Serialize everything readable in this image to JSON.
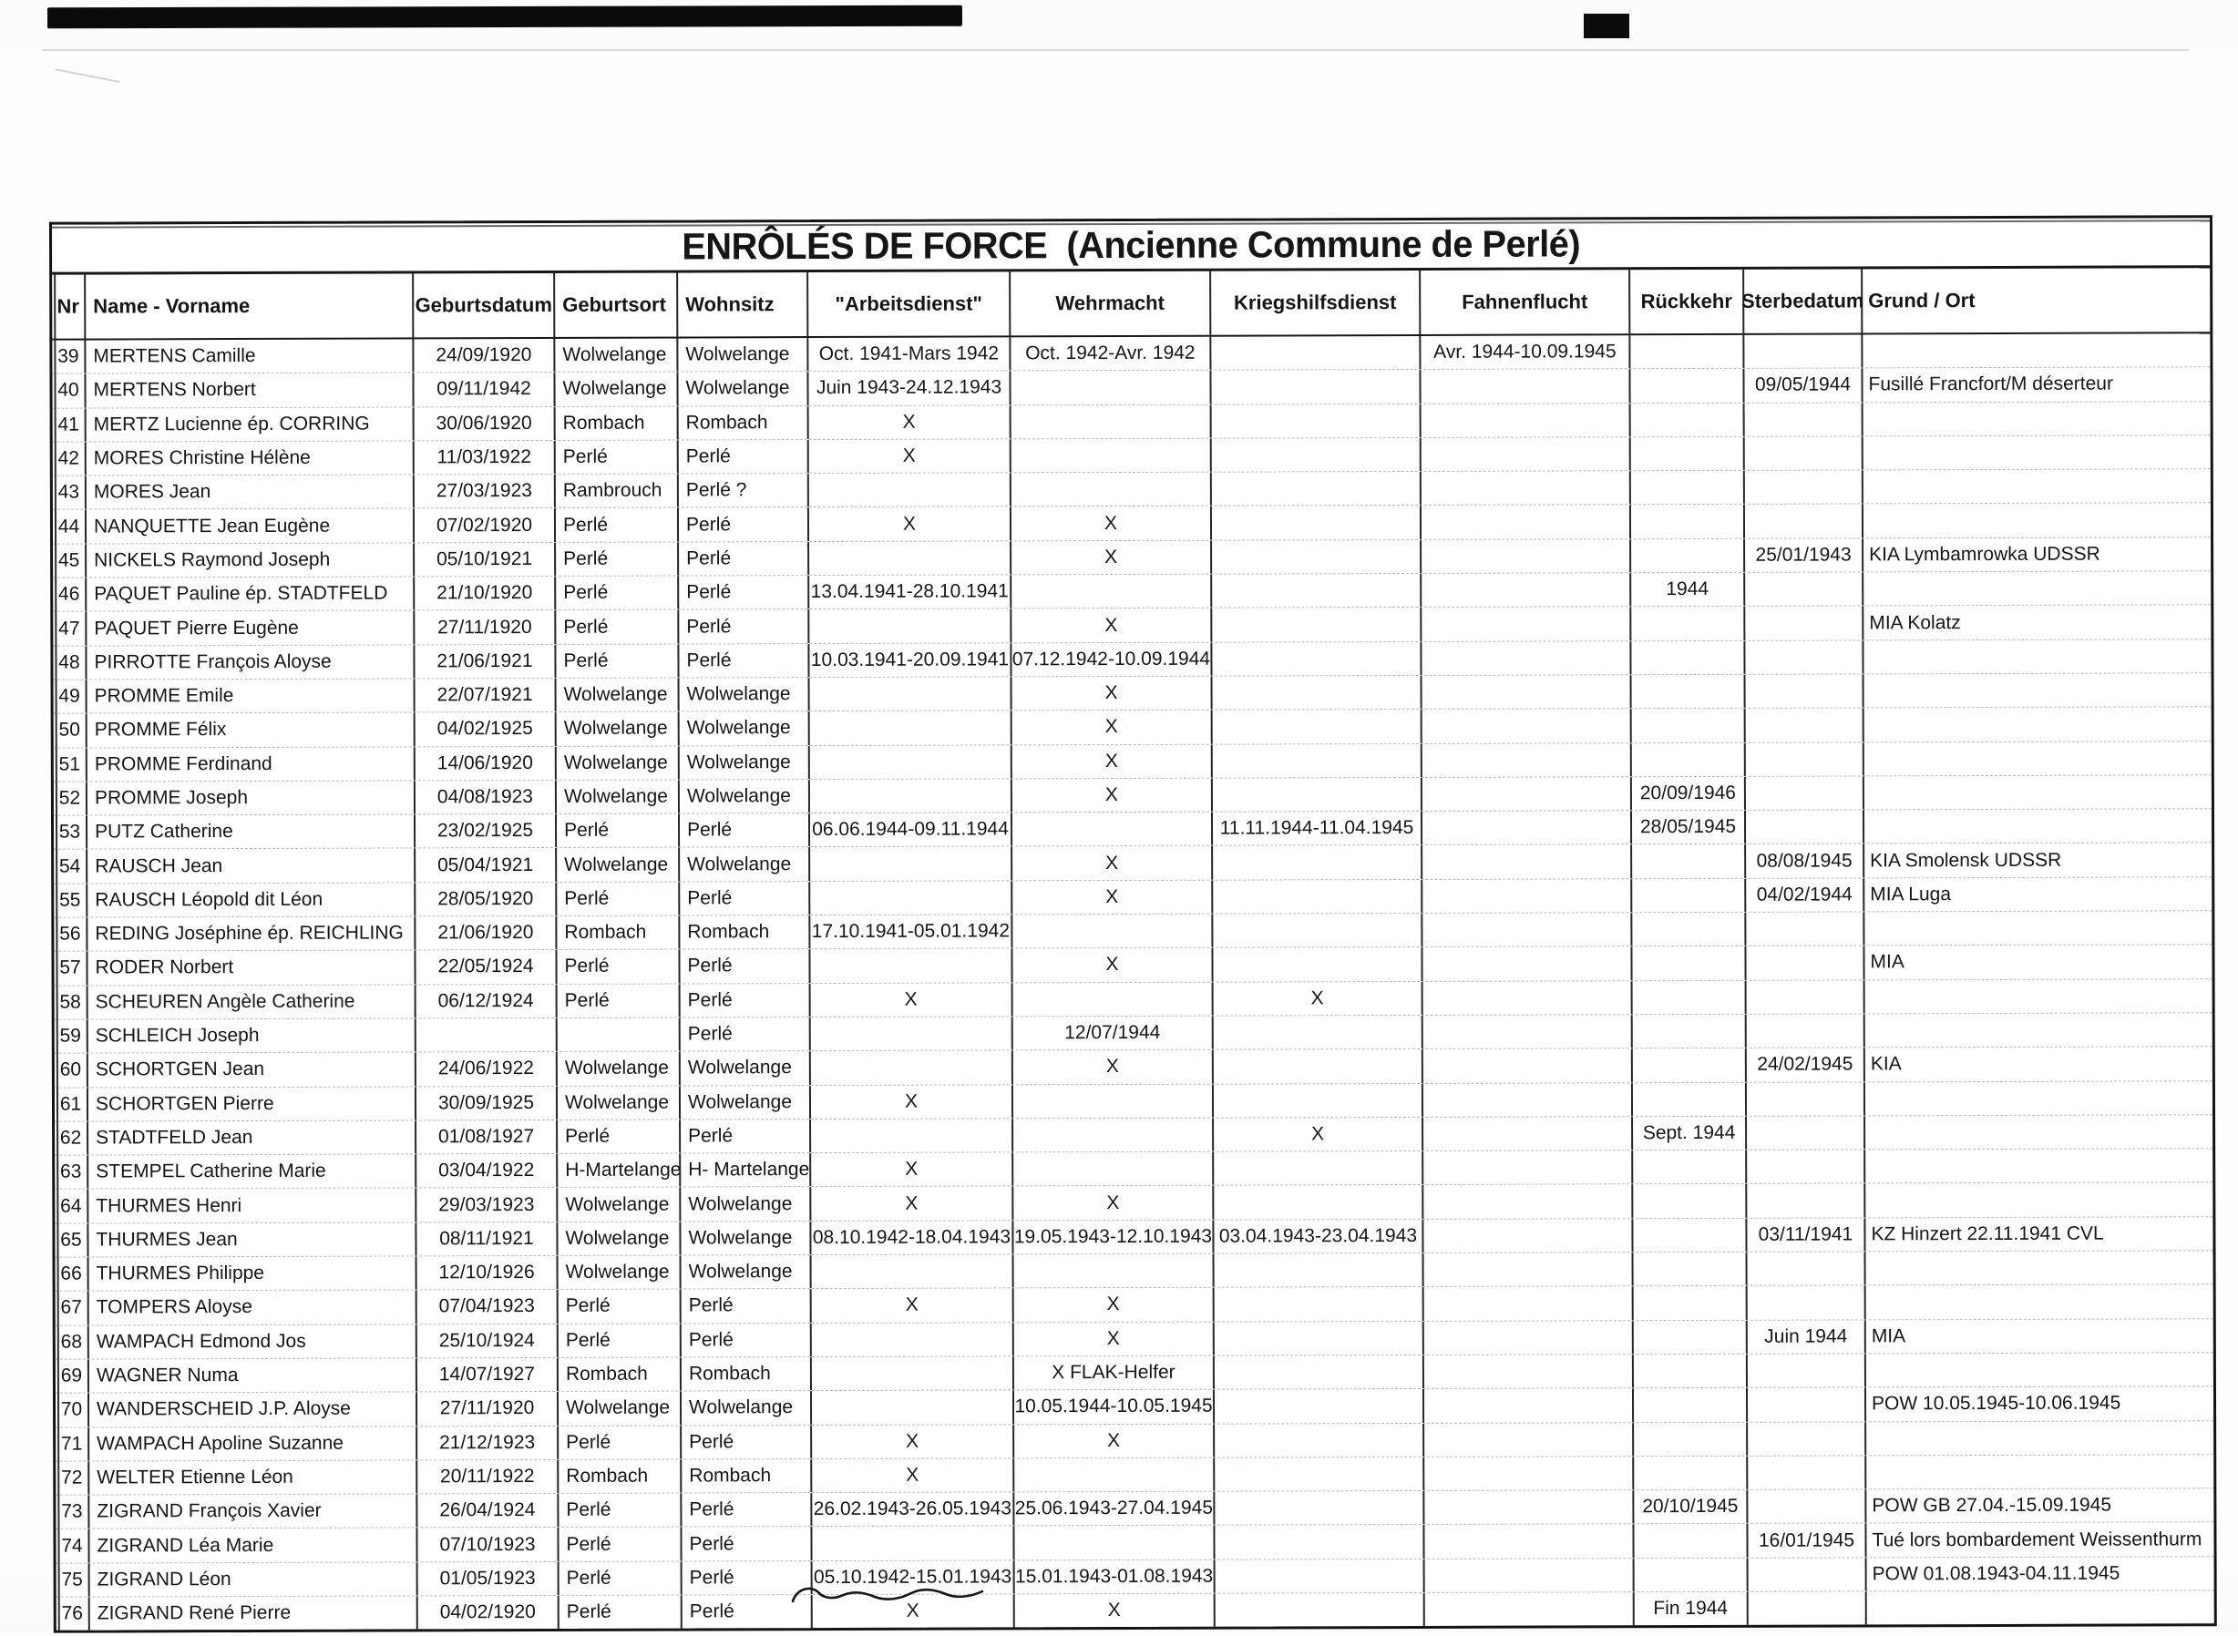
{
  "title": "ENRÔLÉS DE FORCE  (Ancienne Commune de Perlé)",
  "table": {
    "columns": [
      "Nr",
      "Name - Vorname",
      "Geburtsdatum",
      "Geburtsort",
      "Wohnsitz",
      "\"Arbeitsdienst\"",
      "Wehrmacht",
      "Kriegshilfsdienst",
      "Fahnenflucht",
      "Rückkehr",
      "Sterbedatum",
      "Grund / Ort"
    ],
    "rows": [
      [
        "39",
        "MERTENS Camille",
        "24/09/1920",
        "Wolwelange",
        "Wolwelange",
        "Oct. 1941-Mars 1942",
        "Oct. 1942-Avr. 1942",
        "",
        "Avr. 1944-10.09.1945",
        "",
        "",
        ""
      ],
      [
        "40",
        "MERTENS Norbert",
        "09/11/1942",
        "Wolwelange",
        "Wolwelange",
        "Juin 1943-24.12.1943",
        "",
        "",
        "",
        "",
        "09/05/1944",
        "Fusillé Francfort/M déserteur"
      ],
      [
        "41",
        "MERTZ Lucienne ép. CORRING",
        "30/06/1920",
        "Rombach",
        "Rombach",
        "X",
        "",
        "",
        "",
        "",
        "",
        ""
      ],
      [
        "42",
        "MORES Christine Hélène",
        "11/03/1922",
        "Perlé",
        "Perlé",
        "X",
        "",
        "",
        "",
        "",
        "",
        ""
      ],
      [
        "43",
        "MORES Jean",
        "27/03/1923",
        "Rambrouch",
        "Perlé ?",
        "",
        "",
        "",
        "",
        "",
        "",
        ""
      ],
      [
        "44",
        "NANQUETTE Jean Eugène",
        "07/02/1920",
        "Perlé",
        "Perlé",
        "X",
        "X",
        "",
        "",
        "",
        "",
        ""
      ],
      [
        "45",
        "NICKELS Raymond Joseph",
        "05/10/1921",
        "Perlé",
        "Perlé",
        "",
        "X",
        "",
        "",
        "",
        "25/01/1943",
        "KIA Lymbamrowka UDSSR"
      ],
      [
        "46",
        "PAQUET Pauline ép. STADTFELD",
        "21/10/1920",
        "Perlé",
        "Perlé",
        "13.04.1941-28.10.1941",
        "",
        "",
        "",
        "1944",
        "",
        ""
      ],
      [
        "47",
        "PAQUET Pierre Eugène",
        "27/11/1920",
        "Perlé",
        "Perlé",
        "",
        "X",
        "",
        "",
        "",
        "",
        "MIA Kolatz"
      ],
      [
        "48",
        "PIRROTTE François Aloyse",
        "21/06/1921",
        "Perlé",
        "Perlé",
        "10.03.1941-20.09.1941",
        "07.12.1942-10.09.1944",
        "",
        "",
        "",
        "",
        ""
      ],
      [
        "49",
        "PROMME Emile",
        "22/07/1921",
        "Wolwelange",
        "Wolwelange",
        "",
        "X",
        "",
        "",
        "",
        "",
        ""
      ],
      [
        "50",
        "PROMME Félix",
        "04/02/1925",
        "Wolwelange",
        "Wolwelange",
        "",
        "X",
        "",
        "",
        "",
        "",
        ""
      ],
      [
        "51",
        "PROMME Ferdinand",
        "14/06/1920",
        "Wolwelange",
        "Wolwelange",
        "",
        "X",
        "",
        "",
        "",
        "",
        ""
      ],
      [
        "52",
        "PROMME Joseph",
        "04/08/1923",
        "Wolwelange",
        "Wolwelange",
        "",
        "X",
        "",
        "",
        "20/09/1946",
        "",
        ""
      ],
      [
        "53",
        "PUTZ Catherine",
        "23/02/1925",
        "Perlé",
        "Perlé",
        "06.06.1944-09.11.1944",
        "",
        "11.11.1944-11.04.1945",
        "",
        "28/05/1945",
        "",
        ""
      ],
      [
        "54",
        "RAUSCH Jean",
        "05/04/1921",
        "Wolwelange",
        "Wolwelange",
        "",
        "X",
        "",
        "",
        "",
        "08/08/1945",
        "KIA Smolensk UDSSR"
      ],
      [
        "55",
        "RAUSCH Léopold dit Léon",
        "28/05/1920",
        "Perlé",
        "Perlé",
        "",
        "X",
        "",
        "",
        "",
        "04/02/1944",
        "MIA Luga"
      ],
      [
        "56",
        "REDING Joséphine ép. REICHLING",
        "21/06/1920",
        "Rombach",
        "Rombach",
        "17.10.1941-05.01.1942",
        "",
        "",
        "",
        "",
        "",
        ""
      ],
      [
        "57",
        "RODER Norbert",
        "22/05/1924",
        "Perlé",
        "Perlé",
        "",
        "X",
        "",
        "",
        "",
        "",
        "MIA"
      ],
      [
        "58",
        "SCHEUREN Angèle Catherine",
        "06/12/1924",
        "Perlé",
        "Perlé",
        "X",
        "",
        "X",
        "",
        "",
        "",
        ""
      ],
      [
        "59",
        "SCHLEICH Joseph",
        "",
        "",
        "Perlé",
        "",
        "12/07/1944",
        "",
        "",
        "",
        "",
        ""
      ],
      [
        "60",
        "SCHORTGEN Jean",
        "24/06/1922",
        "Wolwelange",
        "Wolwelange",
        "",
        "X",
        "",
        "",
        "",
        "24/02/1945",
        "KIA"
      ],
      [
        "61",
        "SCHORTGEN Pierre",
        "30/09/1925",
        "Wolwelange",
        "Wolwelange",
        "X",
        "",
        "",
        "",
        "",
        "",
        ""
      ],
      [
        "62",
        "STADTFELD Jean",
        "01/08/1927",
        "Perlé",
        "Perlé",
        "",
        "",
        "X",
        "",
        "Sept. 1944",
        "",
        ""
      ],
      [
        "63",
        "STEMPEL Catherine Marie",
        "03/04/1922",
        "H-Martelange",
        "H- Martelange",
        "X",
        "",
        "",
        "",
        "",
        "",
        ""
      ],
      [
        "64",
        "THURMES Henri",
        "29/03/1923",
        "Wolwelange",
        "Wolwelange",
        "X",
        "X",
        "",
        "",
        "",
        "",
        ""
      ],
      [
        "65",
        "THURMES Jean",
        "08/11/1921",
        "Wolwelange",
        "Wolwelange",
        "08.10.1942-18.04.1943",
        "19.05.1943-12.10.1943",
        "03.04.1943-23.04.1943",
        "",
        "",
        "03/11/1941",
        "KZ Hinzert 22.11.1941 CVL"
      ],
      [
        "66",
        "THURMES Philippe",
        "12/10/1926",
        "Wolwelange",
        "Wolwelange",
        "",
        "",
        "",
        "",
        "",
        "",
        ""
      ],
      [
        "67",
        "TOMPERS Aloyse",
        "07/04/1923",
        "Perlé",
        "Perlé",
        "X",
        "X",
        "",
        "",
        "",
        "",
        ""
      ],
      [
        "68",
        "WAMPACH Edmond Jos",
        "25/10/1924",
        "Perlé",
        "Perlé",
        "",
        "X",
        "",
        "",
        "",
        "Juin 1944",
        "MIA"
      ],
      [
        "69",
        "WAGNER Numa",
        "14/07/1927",
        "Rombach",
        "Rombach",
        "",
        "X FLAK-Helfer",
        "",
        "",
        "",
        "",
        ""
      ],
      [
        "70",
        "WANDERSCHEID J.P. Aloyse",
        "27/11/1920",
        "Wolwelange",
        "Wolwelange",
        "",
        "10.05.1944-10.05.1945",
        "",
        "",
        "",
        "",
        "POW 10.05.1945-10.06.1945"
      ],
      [
        "71",
        "WAMPACH Apoline Suzanne",
        "21/12/1923",
        "Perlé",
        "Perlé",
        "X",
        "X",
        "",
        "",
        "",
        "",
        ""
      ],
      [
        "72",
        "WELTER Etienne Léon",
        "20/11/1922",
        "Rombach",
        "Rombach",
        "X",
        "",
        "",
        "",
        "",
        "",
        ""
      ],
      [
        "73",
        "ZIGRAND François Xavier",
        "26/04/1924",
        "Perlé",
        "Perlé",
        "26.02.1943-26.05.1943",
        "25.06.1943-27.04.1945",
        "",
        "",
        "20/10/1945",
        "",
        "POW GB 27.04.-15.09.1945"
      ],
      [
        "74",
        "ZIGRAND Léa Marie",
        "07/10/1923",
        "Perlé",
        "Perlé",
        "",
        "",
        "",
        "",
        "",
        "16/01/1945",
        "Tué lors bombardement Weissenthurm"
      ],
      [
        "75",
        "ZIGRAND Léon",
        "01/05/1923",
        "Perlé",
        "Perlé",
        "05.10.1942-15.01.1943",
        "15.01.1943-01.08.1943",
        "",
        "",
        "",
        "",
        "POW 01.08.1943-04.11.1945"
      ],
      [
        "76",
        "ZIGRAND René Pierre",
        "04/02/1920",
        "Perlé",
        "Perlé",
        "X",
        "X",
        "",
        "",
        "Fin 1944",
        "",
        ""
      ]
    ]
  }
}
